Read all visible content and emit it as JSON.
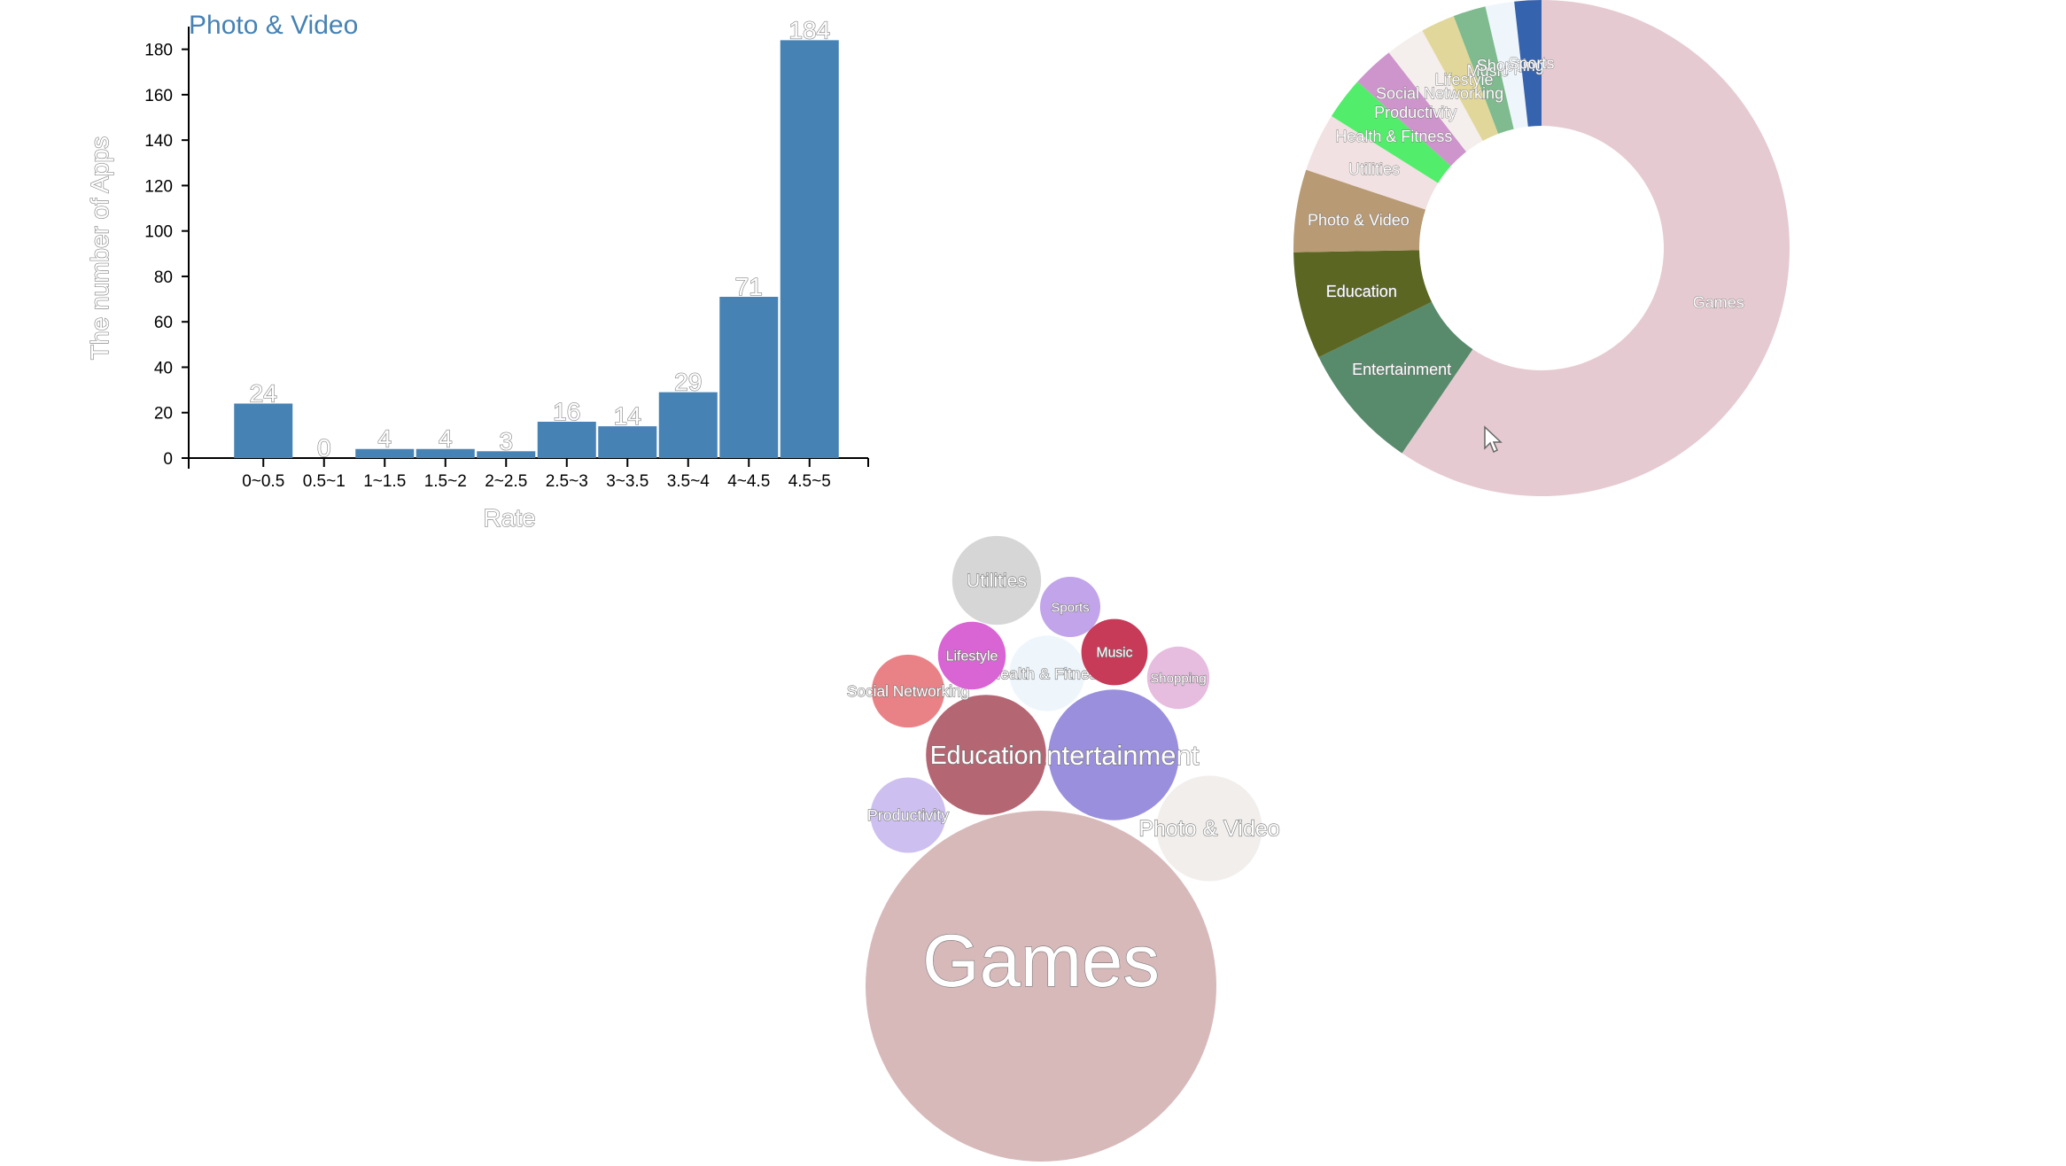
{
  "chart_data": [
    {
      "type": "bar",
      "title": "Photo & Video",
      "xlabel": "Rate",
      "ylabel": "The number of Apps",
      "categories": [
        "0~0.5",
        "0.5~1",
        "1~1.5",
        "1.5~2",
        "2~2.5",
        "2.5~3",
        "3~3.5",
        "3.5~4",
        "4~4.5",
        "4.5~5"
      ],
      "values": [
        24,
        0,
        4,
        4,
        3,
        16,
        14,
        29,
        71,
        184
      ],
      "ylim": [
        0,
        190
      ],
      "yticks": [
        0,
        20,
        40,
        60,
        80,
        100,
        120,
        140,
        160,
        180
      ],
      "color": "#4682b4"
    },
    {
      "type": "pie",
      "donut": true,
      "slices": [
        {
          "label": "Games",
          "value": 3862,
          "color": "#e6cad1"
        },
        {
          "label": "Entertainment",
          "value": 535,
          "color": "#588a6c"
        },
        {
          "label": "Education",
          "value": 453,
          "color": "#5b6622"
        },
        {
          "label": "Photo & Video",
          "value": 349,
          "color": "#b89a74"
        },
        {
          "label": "Utilities",
          "value": 248,
          "color": "#f1e1e2"
        },
        {
          "label": "Health & Fitness",
          "value": 180,
          "color": "#52ed6a"
        },
        {
          "label": "Productivity",
          "value": 178,
          "color": "#cd95cc"
        },
        {
          "label": "Social Networking",
          "value": 167,
          "color": "#f4eeec"
        },
        {
          "label": "Lifestyle",
          "value": 144,
          "color": "#e1d79a"
        },
        {
          "label": "Music",
          "value": 138,
          "color": "#7fbb8e"
        },
        {
          "label": "Shopping",
          "value": 122,
          "color": "#eef6fc"
        },
        {
          "label": "Sports",
          "value": 114,
          "color": "#3663ad"
        }
      ]
    },
    {
      "type": "bubble",
      "bubbles": [
        {
          "label": "Games",
          "value": 3862,
          "color": "#d8b9ba"
        },
        {
          "label": "Entertainment",
          "value": 535,
          "color": "#9a8fdc"
        },
        {
          "label": "Education",
          "value": 453,
          "color": "#b46673"
        },
        {
          "label": "Photo & Video",
          "value": 349,
          "color": "#f1eeec"
        },
        {
          "label": "Utilities",
          "value": 248,
          "color": "#d6d6d6"
        },
        {
          "label": "Health & Fitness",
          "value": 180,
          "color": "#eef6fc"
        },
        {
          "label": "Productivity",
          "value": 178,
          "color": "#cdbff0"
        },
        {
          "label": "Social Networking",
          "value": 167,
          "color": "#e98286"
        },
        {
          "label": "Lifestyle",
          "value": 144,
          "color": "#d965d4"
        },
        {
          "label": "Music",
          "value": 138,
          "color": "#c73a58"
        },
        {
          "label": "Shopping",
          "value": 122,
          "color": "#e6bcdf"
        },
        {
          "label": "Sports",
          "value": 114,
          "color": "#c2a4ea"
        }
      ]
    }
  ]
}
